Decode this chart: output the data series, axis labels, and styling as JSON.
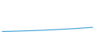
{
  "x": [
    0,
    1,
    2,
    3,
    4,
    5,
    6,
    7,
    8,
    9,
    10,
    11,
    12,
    13,
    14,
    15,
    16,
    17,
    18,
    19,
    20
  ],
  "y": [
    10,
    10.3,
    10.6,
    11.0,
    11.4,
    11.8,
    12.2,
    12.7,
    13.2,
    13.7,
    14.3,
    14.9,
    15.5,
    16.2,
    16.9,
    17.6,
    18.4,
    19.2,
    20.1,
    21.0,
    22.0
  ],
  "line_color": "#3a9fd6",
  "background_color": "#ffffff",
  "ylim": [
    0,
    100
  ],
  "xlim": [
    -0.5,
    20.5
  ]
}
